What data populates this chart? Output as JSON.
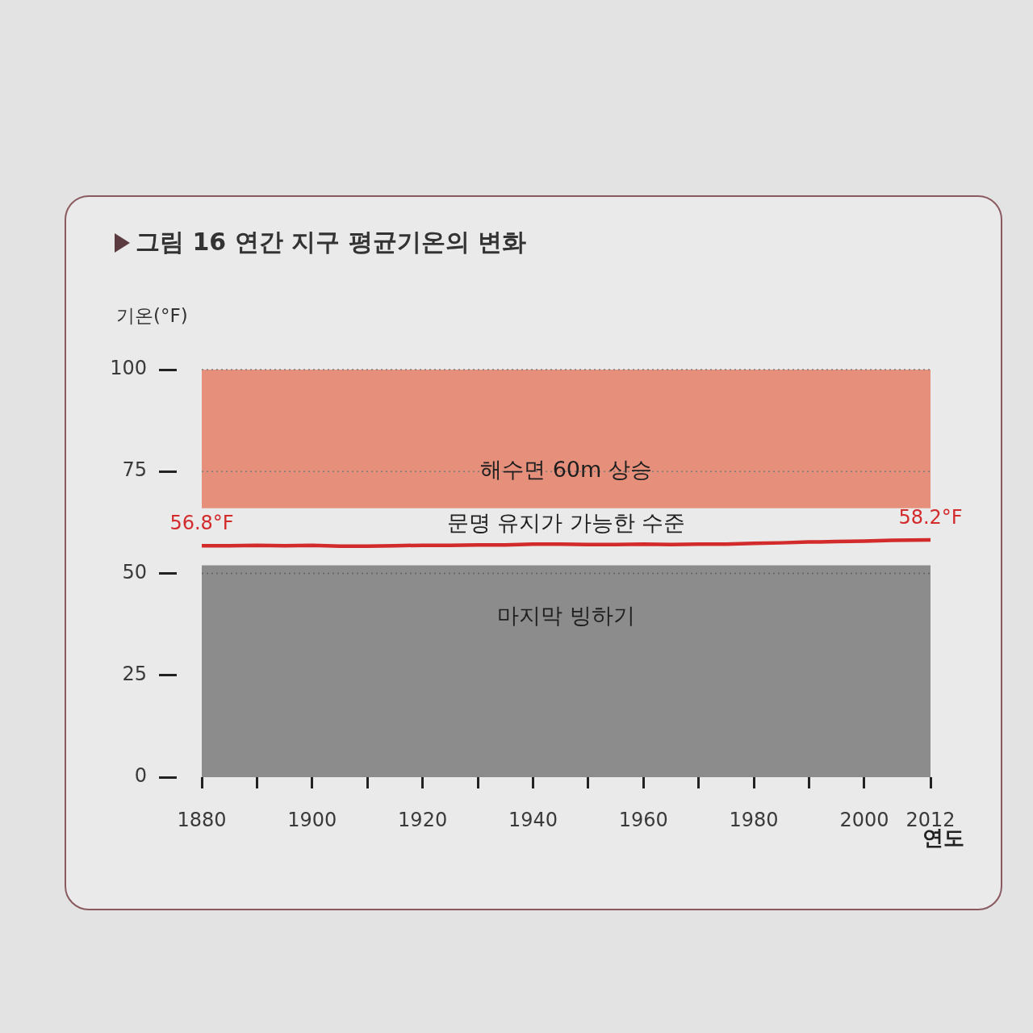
{
  "chart_data": {
    "type": "line",
    "title": "그림 16 연간 지구 평균기온의 변화",
    "ylabel": "기온(°F)",
    "xlabel": "연도",
    "x": [
      1880,
      1885,
      1890,
      1895,
      1900,
      1905,
      1910,
      1915,
      1920,
      1925,
      1930,
      1935,
      1940,
      1945,
      1950,
      1955,
      1960,
      1965,
      1970,
      1975,
      1980,
      1985,
      1990,
      1995,
      2000,
      2005,
      2012
    ],
    "series": [
      {
        "color": "#d32a2c",
        "values": [
          56.8,
          56.8,
          56.9,
          56.8,
          56.9,
          56.7,
          56.7,
          56.8,
          56.9,
          56.9,
          57.0,
          57.0,
          57.2,
          57.2,
          57.1,
          57.1,
          57.2,
          57.1,
          57.2,
          57.2,
          57.4,
          57.5,
          57.7,
          57.8,
          57.9,
          58.1,
          58.2
        ],
        "value_labels": [
          "56.8°F",
          null,
          null,
          null,
          null,
          null,
          null,
          null,
          null,
          null,
          null,
          null,
          null,
          null,
          null,
          null,
          null,
          null,
          null,
          null,
          null,
          null,
          null,
          null,
          null,
          null,
          "58.2°F"
        ]
      }
    ],
    "xlim": [
      1880,
      2012
    ],
    "xticks": [
      1880,
      {
        "value": 1890,
        "label": null
      },
      1900,
      {
        "value": 1910,
        "label": null
      },
      1920,
      {
        "value": 1930,
        "label": null
      },
      1940,
      {
        "value": 1950,
        "label": null
      },
      1960,
      {
        "value": 1970,
        "label": null
      },
      1980,
      {
        "value": 1990,
        "label": null
      },
      2000,
      2012
    ],
    "ylim": [
      0,
      100
    ],
    "yticks": [
      0,
      25,
      50,
      75,
      100
    ],
    "bands": [
      {
        "axis": "y",
        "from": 66,
        "to": 100,
        "color": "#e6907c"
      },
      {
        "axis": "y",
        "from": 0,
        "to": 52,
        "color": "#8c8c8c",
        "label": "마지막 빙하기"
      }
    ],
    "ref_lines": [
      {
        "axis": "y",
        "value": 100,
        "color": "#7a7a7a",
        "line_style": "dotted"
      },
      {
        "axis": "y",
        "value": 75,
        "color": "#7a7a7a",
        "line_style": "dotted",
        "label": "해수면 60m 상승"
      },
      {
        "axis": "y",
        "value": 50,
        "color": "#5e5e5e",
        "line_style": "dotted"
      }
    ],
    "annotations": [
      "문명 유지가 가능한 수준"
    ],
    "marker": "none",
    "line_style": "solid"
  }
}
